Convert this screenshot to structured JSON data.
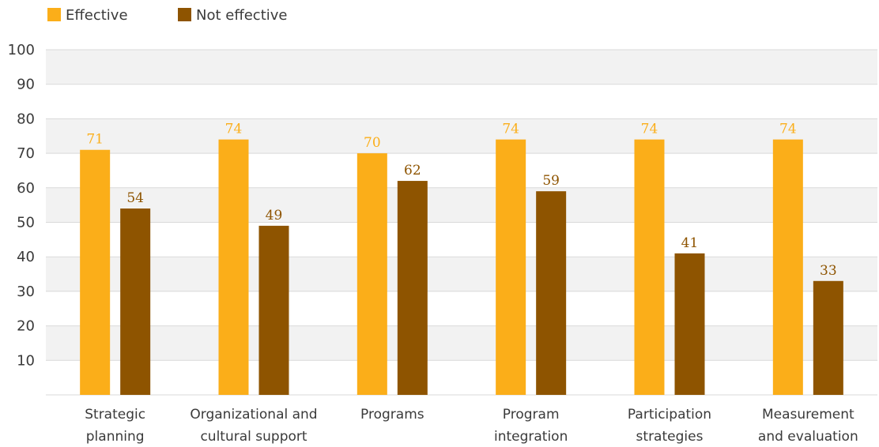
{
  "chart_data": {
    "type": "bar",
    "categories": [
      [
        "Strategic",
        "planning"
      ],
      [
        "Organizational and",
        "cultural support"
      ],
      [
        "Programs"
      ],
      [
        "Program",
        "integration"
      ],
      [
        "Participation",
        "strategies"
      ],
      [
        "Measurement",
        "and evaluation"
      ]
    ],
    "series": [
      {
        "name": "Effective",
        "color": "#FBAE19",
        "values": [
          71,
          74,
          70,
          74,
          74,
          74
        ]
      },
      {
        "name": "Not effective",
        "color": "#8E5400",
        "values": [
          54,
          49,
          62,
          59,
          41,
          33
        ]
      }
    ],
    "yticks": [
      "10",
      "20",
      "30",
      "40",
      "50",
      "60",
      "70",
      "80",
      "90",
      "100"
    ],
    "ylim": [
      0,
      100
    ],
    "grid": true,
    "band_color": "#F2F2F2",
    "grid_color": "#D9D9D9",
    "legend_position": "top-left",
    "data_labels": true
  }
}
